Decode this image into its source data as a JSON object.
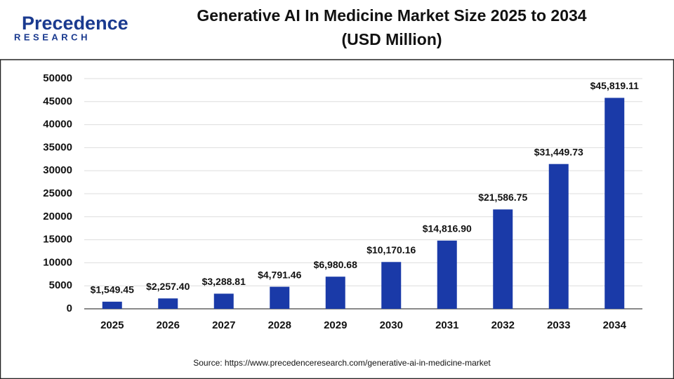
{
  "logo": {
    "name": "Precedence",
    "tagline": "RESEARCH"
  },
  "source": "Source: https://www.precedenceresearch.com/generative-ai-in-medicine-market",
  "chart_data": {
    "type": "bar",
    "title": "Generative AI In Medicine Market Size 2025 to 2034",
    "subtitle": "(USD Million)",
    "categories": [
      "2025",
      "2026",
      "2027",
      "2028",
      "2029",
      "2030",
      "2031",
      "2032",
      "2033",
      "2034"
    ],
    "values": [
      1549.45,
      2257.4,
      3288.81,
      4791.46,
      6980.68,
      10170.16,
      14816.9,
      21586.75,
      31449.73,
      45819.11
    ],
    "value_labels": [
      "$1,549.45",
      "$2,257.40",
      "$3,288.81",
      "$4,791.46",
      "$6,980.68",
      "$10,170.16",
      "$14,816.90",
      "$21,586.75",
      "$31,449.73",
      "$45,819.11"
    ],
    "color": "#1a3aa8",
    "ylim": [
      0,
      50000
    ],
    "yticks": [
      0,
      5000,
      10000,
      15000,
      20000,
      25000,
      30000,
      35000,
      40000,
      45000,
      50000
    ],
    "grid": true
  }
}
